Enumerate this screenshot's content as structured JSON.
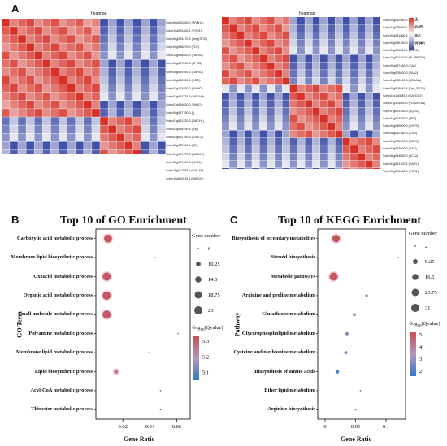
{
  "panels": {
    "a": "A",
    "b": "B",
    "c": "C"
  },
  "heatmap_left": {
    "title": "heatmap",
    "row_labels": [
      "Solyc06g062830.2 (WYB13)",
      "Solyc10g074460.1 (POR1)",
      "Solyc08g078470.2 (4mtgTE33)",
      "Solyc05g056070.3 (TD2)",
      "Solyc12g018020.2 (LAP4C)",
      "Solyc03g007240.3 (SPMS)",
      "Solyc08g019190.2 (LAP4C)",
      "Solyc02g062030.1 (OOC)",
      "Solyc03g121070.2 (MAMO)",
      "Solyc01g091170.3 (ARGAH)",
      "Solyc01g094830.3 (PAHC)",
      "Solyc06g067790.3 (-)",
      "Solyc01g081320.3 (SMCH1)",
      "Solyc02g056490.4 (DW)",
      "Solyc02g081750.3 (GSTL2)",
      "Solyc02g085100.4 (SIF)",
      "Solyc04g079770.3 (SMCC2)",
      "Solyc03g007990.3 (PAO1)",
      "Solyc11g017580.2 (CMLAT)",
      "Solyc10g011010.4 (HMG22)"
    ]
  },
  "heatmap_right": {
    "title": "heatmap",
    "row_labels": [
      "Solyc09g082960.2 (HMG1)",
      "Solyc07g075560.1 (TYRAAT2)",
      "Solyc09g081560.4 (ACC1)",
      "Solyc05g056150.3 (CYP707A2)",
      "Solyc09g091520.1 (ACC1)",
      "Solyc12g061910.4 (PLSBETA1)",
      "Solyc05g037460.3 (CA1)",
      "Solyc06g076030.3 (PAA2)",
      "Solyc04g080460.3 (4CDAIA)",
      "Solyc05g009540.4 (Ost_20139)",
      "Solyc03g110680.4 (GA2OX2)",
      "Solyc01g104020.3 (PLDZETA1)",
      "Solyc01g091450.3 (SQD2)",
      "Solyc01g074530.2 (PPS)",
      "Solyc05g049000.3 (DHFS)",
      "Solyc08g062360.3 (CHO)",
      "Solyc07g055390.3 (GAPA)",
      "Solyc02g083600.3 (AAO)",
      "Solyc06g084050.3 (ACL2)",
      "Solyc03g031320.4 (HAAY)",
      "Solyc06g074660.3 (POR1)"
    ],
    "legend_ticks": [
      "1",
      "0.75",
      "0.5",
      "0.25"
    ]
  },
  "chart_data": [
    {
      "type": "scatter",
      "title": "Top 10 of GO Enrichment",
      "xlabel": "Gene Ratio",
      "ylabel": "GO Term",
      "xlim": [
        0,
        0.07
      ],
      "xticks": [
        "0.02",
        "0.04",
        "0.06"
      ],
      "xtick_values": [
        0.02,
        0.04,
        0.06
      ],
      "categories": [
        "Carboxylic acid metabolic process",
        "Membrane lipid biosynthetic process",
        "Oxoacid metabolic process",
        "Organic acid metabolic process",
        "Small molecule metabolic process",
        "Polyamine metabolic process",
        "Membrane lipid metabolic process",
        "Lipid biosynthetic process",
        "Acyl-CoA metabolic process",
        "Thioester metabolic process"
      ],
      "gene_ratio": [
        0.009,
        0.044,
        0.008,
        0.008,
        0.008,
        0.061,
        0.039,
        0.015,
        0.048,
        0.048
      ],
      "gene_number": [
        22,
        6,
        23,
        23,
        23,
        6,
        6,
        9,
        6,
        6
      ],
      "neg_log10_qvalue": [
        5.3,
        5.26,
        5.3,
        5.3,
        5.3,
        5.28,
        5.13,
        5.24,
        5.05,
        5.05
      ],
      "legend_size_title": "Gene number",
      "legend_size_values": [
        "6",
        "10.25",
        "14.5",
        "18.75",
        "23"
      ],
      "legend_size_numbers": [
        6,
        10.25,
        14.5,
        18.75,
        23
      ],
      "legend_color_ticks": [
        "5.3",
        "5.2",
        "5.1"
      ],
      "legend_color_values": [
        5.3,
        5.2,
        5.1
      ],
      "color_range": [
        5.05,
        5.33
      ],
      "grid": false
    },
    {
      "type": "scatter",
      "title": "Top 10 of KEGG Enrichment",
      "xlabel": "Gene Ratio",
      "ylabel": "Pathway",
      "xlim": [
        -0.012,
        0.132
      ],
      "xticks": [
        "0",
        "0.05",
        "0.1"
      ],
      "xtick_values": [
        0,
        0.05,
        0.1
      ],
      "categories": [
        "Biosynthesis of secondary metabolites",
        "Steroid biosynthesis",
        "Metabolic pathways",
        "Arginine and proline metabolism",
        "Glutathione metabolism",
        "Glycerophospholipid metabolism",
        "Cysteine and methionine metabolism",
        "Biosynthesis of amino acids",
        "Ether lipid metabolism",
        "Arginine biosynthesis"
      ],
      "gene_ratio": [
        0.018,
        0.12,
        0.014,
        0.068,
        0.048,
        0.036,
        0.034,
        0.02,
        0.058,
        0.05
      ],
      "gene_number": [
        26,
        2,
        31,
        3,
        4,
        4,
        4,
        5,
        2,
        2
      ],
      "neg_log10_qvalue": [
        4.8,
        4.5,
        4.8,
        3.8,
        3.5,
        2.4,
        2.3,
        1.5,
        1.4,
        1.4
      ],
      "legend_size_title": "Gene number",
      "legend_size_values": [
        "2",
        "9.25",
        "16.5",
        "23.75",
        "31"
      ],
      "legend_size_numbers": [
        2,
        9.25,
        16.5,
        23.75,
        31
      ],
      "legend_color_ticks": [
        "5",
        "4",
        "3",
        "2"
      ],
      "legend_color_values": [
        5,
        4,
        3,
        2
      ],
      "color_range": [
        1.2,
        5.2
      ],
      "grid": false
    }
  ],
  "legend_color_title_parts": [
    "-log",
    "10",
    "(Qvalue)"
  ]
}
